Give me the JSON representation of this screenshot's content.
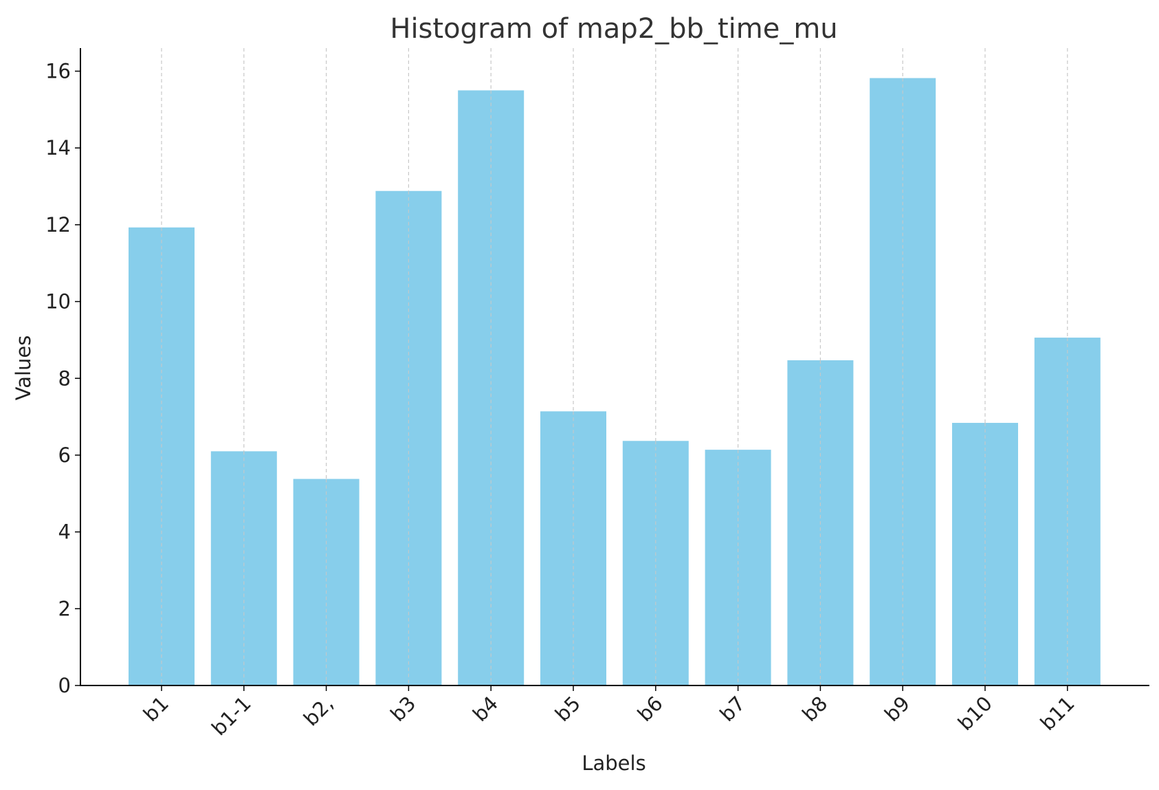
{
  "chart_data": {
    "type": "bar",
    "title": "Histogram of map2_bb_time_mu",
    "xlabel": "Labels",
    "ylabel": "Values",
    "categories": [
      "b1",
      "b1-1",
      "b2,",
      "b3",
      "b4",
      "b5",
      "b6",
      "b7",
      "b8",
      "b9",
      "b10",
      "b11"
    ],
    "values": [
      11.93,
      6.1,
      5.38,
      12.88,
      15.5,
      7.14,
      6.37,
      6.14,
      8.47,
      15.82,
      6.84,
      9.06
    ],
    "ylim": [
      0,
      16.6
    ],
    "yticks": [
      0,
      2,
      4,
      6,
      8,
      10,
      12,
      14,
      16
    ],
    "grid": "x-dashed",
    "bar_color": "#87ceeb",
    "grid_color": "#c8c8c8",
    "axis_color": "#000000",
    "text_color": "#333333"
  }
}
